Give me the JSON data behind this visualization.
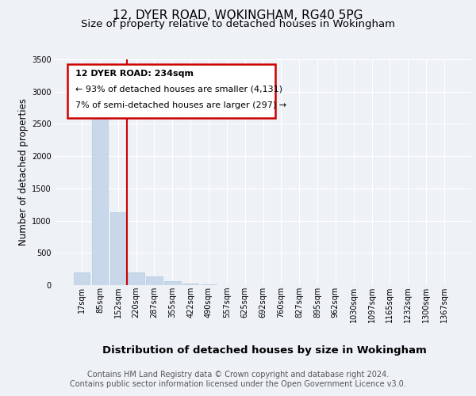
{
  "title": "12, DYER ROAD, WOKINGHAM, RG40 5PG",
  "subtitle": "Size of property relative to detached houses in Wokingham",
  "xlabel": "Distribution of detached houses by size in Wokingham",
  "ylabel": "Number of detached properties",
  "footer_line1": "Contains HM Land Registry data © Crown copyright and database right 2024.",
  "footer_line2": "Contains public sector information licensed under the Open Government Licence v3.0.",
  "annotation_line1": "12 DYER ROAD: 234sqm",
  "annotation_line2": "← 93% of detached houses are smaller (4,131)",
  "annotation_line3": "7% of semi-detached houses are larger (297) →",
  "bar_color": "#c8d8ea",
  "bar_edge_color": "#b0c8de",
  "vline_color": "#cc0000",
  "annotation_box_edgecolor": "#cc0000",
  "annotation_box_facecolor": "#ffffff",
  "categories": [
    "17sqm",
    "85sqm",
    "152sqm",
    "220sqm",
    "287sqm",
    "355sqm",
    "422sqm",
    "490sqm",
    "557sqm",
    "625sqm",
    "692sqm",
    "760sqm",
    "827sqm",
    "895sqm",
    "962sqm",
    "1030sqm",
    "1097sqm",
    "1165sqm",
    "1232sqm",
    "1300sqm",
    "1367sqm"
  ],
  "values": [
    200,
    2630,
    1130,
    200,
    130,
    65,
    25,
    8,
    4,
    3,
    2,
    2,
    1,
    1,
    1,
    0,
    0,
    0,
    0,
    0,
    0
  ],
  "ylim": [
    0,
    3500
  ],
  "yticks": [
    0,
    500,
    1000,
    1500,
    2000,
    2500,
    3000,
    3500
  ],
  "vline_position": 2.5,
  "background_color": "#eef2f6",
  "plot_background_color": "#eef2f6",
  "grid_color": "#ffffff",
  "title_fontsize": 11,
  "subtitle_fontsize": 9.5,
  "ylabel_fontsize": 8.5,
  "xlabel_fontsize": 9.5,
  "tick_fontsize": 7,
  "footer_fontsize": 7,
  "ann_line1_fontsize": 8,
  "ann_line2_fontsize": 8,
  "ann_line3_fontsize": 8
}
